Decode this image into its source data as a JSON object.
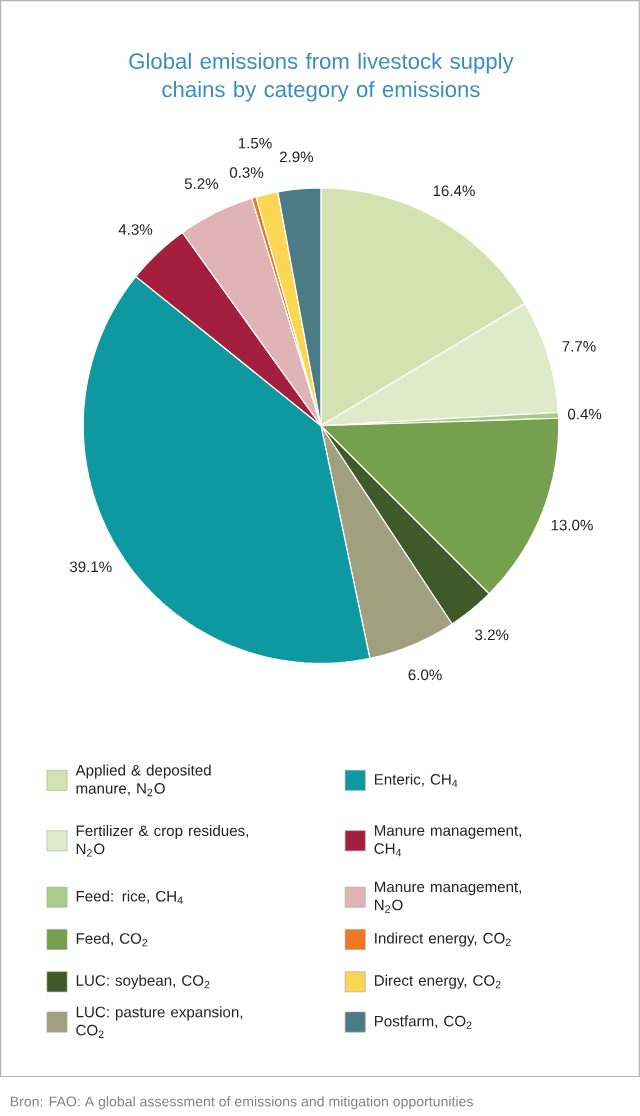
{
  "chart_data": {
    "type": "pie",
    "title": "Global emissions from livestock supply chains by category of emissions",
    "categories": [
      "Applied & deposited manure, N$_{2}$O",
      "Fertilizer & crop residues, N$_{2}$O",
      "Feed: rice, CH$_{4}$",
      "Feed, CO$_{2}$",
      "LUC: soybean, CO$_{2}$",
      "LUC: pasture expansion, CO$_{2}$",
      "Enteric, CH$_{4}$",
      "Manure management, CH$_{4}$",
      "Manure management, N$_{2}$O",
      "Indirect energy, CO$_{2}$",
      "Direct energy, CO$_{2}$",
      "Postfarm, CO$_{2}$"
    ],
    "values": [
      16.4,
      7.7,
      0.4,
      13.0,
      3.2,
      6.0,
      39.1,
      4.3,
      5.2,
      0.3,
      1.5,
      2.9
    ],
    "value_labels": [
      "16.4%",
      "7.7%",
      "0.4%",
      "13.0%",
      "3.2%",
      "6.0%",
      "39.1%",
      "4.3%",
      "5.2%",
      "0.3%",
      "1.5%",
      "2.9%"
    ],
    "colors": [
      "#d3e2b0",
      "#dfeacb",
      "#a9cc88",
      "#76a04e",
      "#3f5a28",
      "#a0a07e",
      "#0e99a1",
      "#a31f3d",
      "#e0b3b5",
      "#ef7722",
      "#fbd653",
      "#4b7c85"
    ],
    "legend": "bottom",
    "annotations": [
      "Bron: FAO: A global assessment of emissions and mitigation opportunities"
    ]
  }
}
